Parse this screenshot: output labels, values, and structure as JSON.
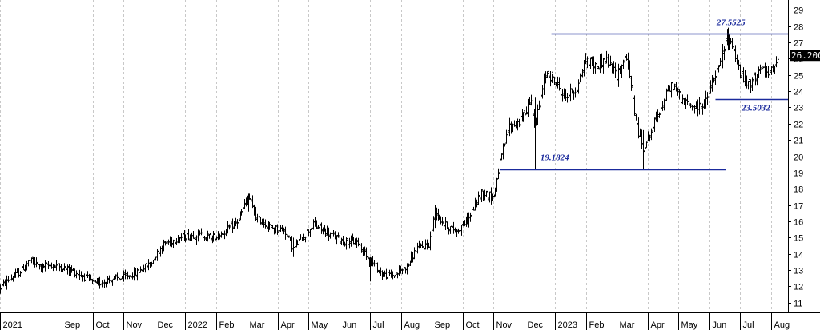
{
  "chart_data": {
    "type": "bar",
    "title": "",
    "xlabel": "",
    "ylabel": "",
    "ylim": [
      10.4,
      29.6
    ],
    "grid": "vertical-dashed",
    "price_axis_side": "right",
    "colors": {
      "bars": "#000000",
      "lines": "#1a2a9c",
      "annotation": "#1a2a9c",
      "badge_bg": "#000000",
      "badge_text": "#ffffff",
      "grid": "#c8c8c8"
    },
    "y_ticks": [
      "11",
      "12",
      "13",
      "14",
      "15",
      "16",
      "17",
      "18",
      "19",
      "20",
      "21",
      "22",
      "23",
      "24",
      "25",
      "26",
      "27",
      "28",
      "29"
    ],
    "x_labels": [
      {
        "text": "2021",
        "x": 0
      },
      {
        "text": "Sep",
        "x": 2
      },
      {
        "text": "Oct",
        "x": 3
      },
      {
        "text": "Nov",
        "x": 4
      },
      {
        "text": "Dec",
        "x": 5
      },
      {
        "text": "2022",
        "x": 6
      },
      {
        "text": "Feb",
        "x": 7
      },
      {
        "text": "Mar",
        "x": 8
      },
      {
        "text": "Apr",
        "x": 9
      },
      {
        "text": "May",
        "x": 10
      },
      {
        "text": "Jun",
        "x": 11
      },
      {
        "text": "Jul",
        "x": 12
      },
      {
        "text": "Aug",
        "x": 13
      },
      {
        "text": "Sep",
        "x": 14
      },
      {
        "text": "Oct",
        "x": 15
      },
      {
        "text": "Nov",
        "x": 16
      },
      {
        "text": "Dec",
        "x": 17
      },
      {
        "text": "2023",
        "x": 18
      },
      {
        "text": "Feb",
        "x": 19
      },
      {
        "text": "Mar",
        "x": 20
      },
      {
        "text": "Apr",
        "x": 21
      },
      {
        "text": "May",
        "x": 22
      },
      {
        "text": "Jun",
        "x": 23
      },
      {
        "text": "Jul",
        "x": 24
      },
      {
        "text": "Aug",
        "x": 25
      }
    ],
    "x_range": [
      0,
      25.55
    ],
    "price_path": [
      [
        0,
        11.9
      ],
      [
        0.25,
        12.4
      ],
      [
        0.6,
        12.8
      ],
      [
        0.95,
        13.6
      ],
      [
        1.3,
        13.2
      ],
      [
        1.8,
        13.3
      ],
      [
        2.3,
        13.0
      ],
      [
        2.8,
        12.5
      ],
      [
        3.1,
        12.1
      ],
      [
        3.5,
        12.4
      ],
      [
        3.9,
        12.5
      ],
      [
        4.4,
        12.8
      ],
      [
        4.9,
        13.5
      ],
      [
        5.3,
        14.6
      ],
      [
        5.8,
        15.0
      ],
      [
        6.4,
        15.2
      ],
      [
        6.9,
        15.0
      ],
      [
        7.3,
        15.4
      ],
      [
        7.7,
        16.0
      ],
      [
        8.05,
        17.5
      ],
      [
        8.3,
        16.2
      ],
      [
        8.8,
        15.6
      ],
      [
        9.2,
        15.5
      ],
      [
        9.5,
        14.3
      ],
      [
        9.8,
        15.0
      ],
      [
        10.15,
        15.8
      ],
      [
        10.6,
        15.3
      ],
      [
        11.1,
        14.8
      ],
      [
        11.6,
        14.7
      ],
      [
        12.0,
        13.6
      ],
      [
        12.4,
        12.7
      ],
      [
        12.8,
        12.7
      ],
      [
        13.2,
        13.3
      ],
      [
        13.5,
        14.3
      ],
      [
        13.9,
        14.6
      ],
      [
        14.1,
        16.7
      ],
      [
        14.4,
        15.8
      ],
      [
        14.8,
        15.4
      ],
      [
        15.2,
        16.2
      ],
      [
        15.6,
        17.8
      ],
      [
        16.0,
        17.5
      ],
      [
        16.2,
        19.5
      ],
      [
        16.5,
        21.8
      ],
      [
        16.9,
        22.2
      ],
      [
        17.2,
        23.5
      ],
      [
        17.35,
        22.0
      ],
      [
        17.7,
        25.2
      ],
      [
        18.0,
        24.6
      ],
      [
        18.3,
        23.6
      ],
      [
        18.7,
        24.2
      ],
      [
        19.0,
        26.0
      ],
      [
        19.3,
        25.5
      ],
      [
        19.6,
        26.0
      ],
      [
        20.0,
        25.0
      ],
      [
        20.3,
        26.2
      ],
      [
        20.6,
        22.2
      ],
      [
        20.85,
        20.5
      ],
      [
        21.1,
        21.5
      ],
      [
        21.4,
        23.0
      ],
      [
        21.8,
        24.4
      ],
      [
        22.15,
        23.3
      ],
      [
        22.6,
        23.0
      ],
      [
        22.9,
        23.4
      ],
      [
        23.1,
        24.6
      ],
      [
        23.4,
        26.0
      ],
      [
        23.6,
        27.4
      ],
      [
        23.8,
        26.5
      ],
      [
        24.0,
        25.0
      ],
      [
        24.3,
        24.2
      ],
      [
        24.6,
        25.4
      ],
      [
        24.9,
        25.0
      ],
      [
        25.1,
        25.5
      ],
      [
        25.2,
        26.2
      ]
    ],
    "bars_count": 500,
    "levels": [
      {
        "value": 27.5525,
        "label": "27.5525",
        "x_start": 17.88,
        "x_end": 25.55
      },
      {
        "value": 23.5032,
        "label": "23.5032",
        "x_start": 23.2,
        "x_end": 25.55
      },
      {
        "value": 19.1824,
        "label": "19.1824",
        "x_start": 16.2,
        "x_end": 23.55
      }
    ],
    "last_price": "26.200"
  }
}
